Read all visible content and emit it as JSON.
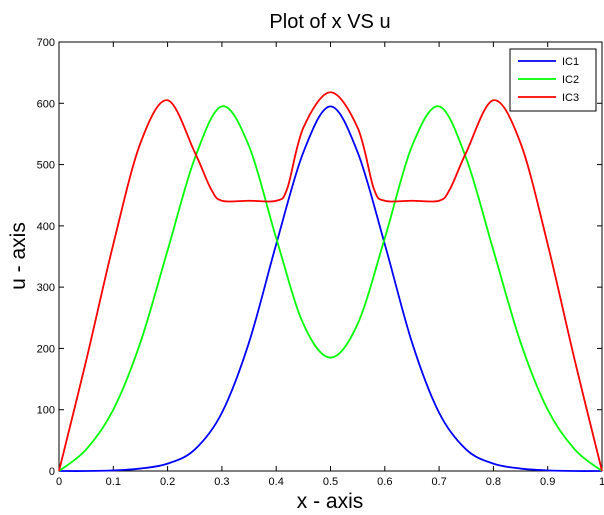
{
  "chart_data": {
    "type": "line",
    "title": "Plot of x VS u",
    "xlabel": "x - axis",
    "ylabel": "u - axis",
    "xlim": [
      0,
      1
    ],
    "ylim": [
      0,
      700
    ],
    "x_ticks": [
      "0",
      "0.1",
      "0.2",
      "0.3",
      "0.4",
      "0.5",
      "0.6",
      "0.7",
      "0.8",
      "0.9",
      "1"
    ],
    "y_ticks": [
      "0",
      "100",
      "200",
      "300",
      "400",
      "500",
      "600",
      "700"
    ],
    "grid": false,
    "legend_position": "top-right",
    "series": [
      {
        "name": "IC1",
        "color": "#0000ff",
        "points": [
          [
            0,
            0
          ],
          [
            0.05,
            0
          ],
          [
            0.1,
            1
          ],
          [
            0.15,
            4
          ],
          [
            0.2,
            12
          ],
          [
            0.25,
            35
          ],
          [
            0.3,
            95
          ],
          [
            0.35,
            210
          ],
          [
            0.4,
            370
          ],
          [
            0.45,
            520
          ],
          [
            0.5,
            595
          ],
          [
            0.55,
            520
          ],
          [
            0.6,
            370
          ],
          [
            0.65,
            210
          ],
          [
            0.7,
            95
          ],
          [
            0.75,
            35
          ],
          [
            0.8,
            12
          ],
          [
            0.85,
            4
          ],
          [
            0.9,
            1
          ],
          [
            0.95,
            0
          ],
          [
            1,
            0
          ]
        ]
      },
      {
        "name": "IC2",
        "color": "#00ff00",
        "points": [
          [
            0,
            0
          ],
          [
            0.05,
            35
          ],
          [
            0.1,
            100
          ],
          [
            0.15,
            210
          ],
          [
            0.2,
            360
          ],
          [
            0.25,
            510
          ],
          [
            0.3,
            595
          ],
          [
            0.35,
            530
          ],
          [
            0.4,
            380
          ],
          [
            0.45,
            240
          ],
          [
            0.5,
            185
          ],
          [
            0.55,
            240
          ],
          [
            0.6,
            380
          ],
          [
            0.65,
            530
          ],
          [
            0.7,
            595
          ],
          [
            0.75,
            510
          ],
          [
            0.8,
            360
          ],
          [
            0.85,
            210
          ],
          [
            0.9,
            100
          ],
          [
            0.95,
            35
          ],
          [
            1,
            0
          ]
        ]
      },
      {
        "name": "IC3",
        "color": "#ff0000",
        "points": [
          [
            0,
            0
          ],
          [
            0.05,
            180
          ],
          [
            0.1,
            370
          ],
          [
            0.15,
            535
          ],
          [
            0.2,
            605
          ],
          [
            0.25,
            520
          ],
          [
            0.28,
            460
          ],
          [
            0.3,
            441
          ],
          [
            0.35,
            441
          ],
          [
            0.4,
            441
          ],
          [
            0.42,
            460
          ],
          [
            0.45,
            560
          ],
          [
            0.5,
            618
          ],
          [
            0.55,
            560
          ],
          [
            0.58,
            460
          ],
          [
            0.6,
            441
          ],
          [
            0.65,
            441
          ],
          [
            0.7,
            441
          ],
          [
            0.72,
            460
          ],
          [
            0.75,
            520
          ],
          [
            0.8,
            605
          ],
          [
            0.85,
            535
          ],
          [
            0.9,
            370
          ],
          [
            0.95,
            180
          ],
          [
            1,
            0
          ]
        ]
      }
    ]
  }
}
